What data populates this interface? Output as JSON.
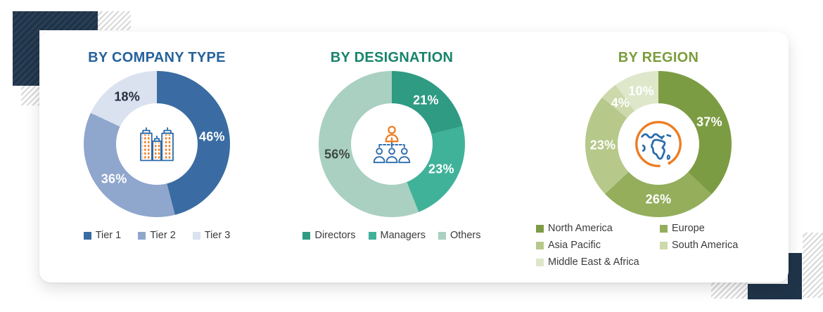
{
  "theme": {
    "corner_navy": "#203449",
    "corner_navy_stripe": "#2b4158",
    "hatch_gray": "#d7d7d7",
    "card_bg": "#ffffff",
    "legend_text": "#3b3b3b",
    "icon_blue": "#2a6bab",
    "icon_orange": "#ed7d23"
  },
  "chart_data": [
    {
      "type": "pie",
      "donut": true,
      "title": "BY COMPANY TYPE",
      "title_color": "#25629b",
      "center_icon": "buildings-icon",
      "legend_position": "bottom",
      "start_angle_deg": 0,
      "direction": "clockwise",
      "categories": [
        "Tier 1",
        "Tier 2",
        "Tier 3"
      ],
      "values": [
        46,
        36,
        18
      ],
      "value_labels": [
        "46%",
        "36%",
        "18%"
      ],
      "colors": [
        "#3a6ca3",
        "#8fa6cd",
        "#dae1ef"
      ],
      "value_label_colors": [
        "#ffffff",
        "#ffffff",
        "#242f3e"
      ]
    },
    {
      "type": "pie",
      "donut": true,
      "title": "BY DESIGNATION",
      "title_color": "#17846c",
      "center_icon": "org-chart-icon",
      "legend_position": "bottom",
      "start_angle_deg": 0,
      "direction": "clockwise",
      "categories": [
        "Directors",
        "Managers",
        "Others"
      ],
      "values": [
        21,
        23,
        56
      ],
      "value_labels": [
        "21%",
        "23%",
        "56%"
      ],
      "colors": [
        "#2e9b82",
        "#41b29a",
        "#a9d0c0"
      ],
      "value_label_colors": [
        "#ffffff",
        "#ffffff",
        "#3e4946"
      ]
    },
    {
      "type": "pie",
      "donut": true,
      "title": "BY REGION",
      "title_color": "#7b9c3c",
      "center_icon": "globe-icon",
      "legend_position": "bottom",
      "start_angle_deg": 0,
      "direction": "clockwise",
      "categories": [
        "North America",
        "Europe",
        "Asia Pacific",
        "South America",
        "Middle East & Africa"
      ],
      "values": [
        37,
        26,
        23,
        4,
        10
      ],
      "value_labels": [
        "37%",
        "26%",
        "23%",
        "4%",
        "10%"
      ],
      "colors": [
        "#7c9c43",
        "#94ae5c",
        "#b6c98b",
        "#cdd9ab",
        "#dee7ca"
      ],
      "value_label_colors": [
        "#ffffff",
        "#ffffff",
        "#ffffff",
        "#ffffff",
        "#ffffff"
      ]
    }
  ]
}
